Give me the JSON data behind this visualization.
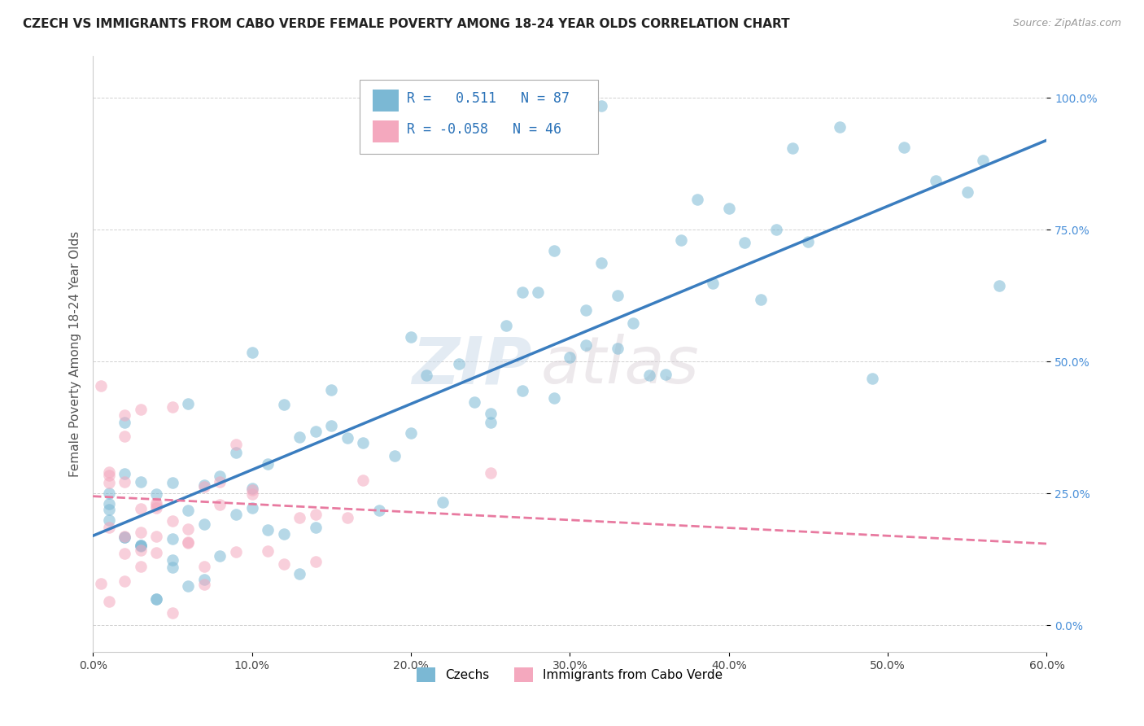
{
  "title": "CZECH VS IMMIGRANTS FROM CABO VERDE FEMALE POVERTY AMONG 18-24 YEAR OLDS CORRELATION CHART",
  "source": "Source: ZipAtlas.com",
  "ylabel": "Female Poverty Among 18-24 Year Olds",
  "xlim": [
    0.0,
    0.6
  ],
  "ylim": [
    -0.05,
    1.08
  ],
  "xticks": [
    0.0,
    0.1,
    0.2,
    0.3,
    0.4,
    0.5,
    0.6
  ],
  "xticklabels": [
    "0.0%",
    "10.0%",
    "20.0%",
    "30.0%",
    "40.0%",
    "50.0%",
    "60.0%"
  ],
  "yticks": [
    0.0,
    0.25,
    0.5,
    0.75,
    1.0
  ],
  "yticklabels": [
    "0.0%",
    "25.0%",
    "50.0%",
    "75.0%",
    "100.0%"
  ],
  "legend1_label": "Czechs",
  "legend2_label": "Immigrants from Cabo Verde",
  "r1": 0.511,
  "n1": 87,
  "r2": -0.058,
  "n2": 46,
  "blue_color": "#7bb8d4",
  "pink_color": "#f4a8be",
  "blue_line_color": "#3a7dbf",
  "pink_line_color": "#e87aa0",
  "title_fontsize": 11,
  "axis_label_fontsize": 11,
  "tick_fontsize": 10,
  "watermark": "ZIPAtlas",
  "blue_trend_x0": 0.0,
  "blue_trend_y0": 0.17,
  "blue_trend_x1": 0.6,
  "blue_trend_y1": 0.92,
  "pink_trend_x0": 0.0,
  "pink_trend_y0": 0.245,
  "pink_trend_x1": 0.6,
  "pink_trend_y1": 0.155
}
